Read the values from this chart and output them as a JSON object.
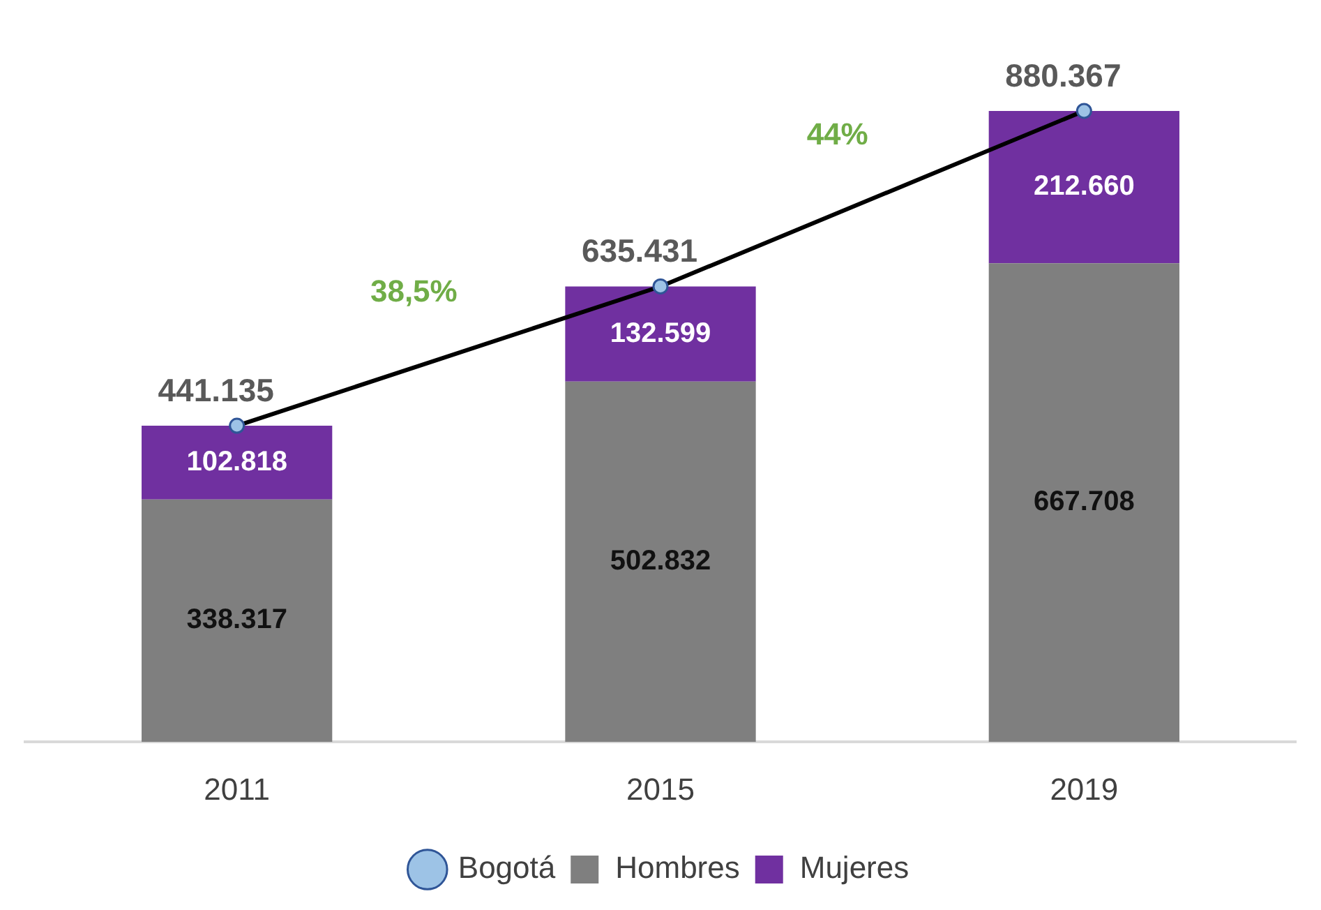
{
  "chart_data": {
    "type": "bar",
    "stacked": true,
    "categories": [
      "2011",
      "2015",
      "2019"
    ],
    "series": [
      {
        "name": "Hombres",
        "color": "#7f7f7f",
        "values": [
          338317,
          502832,
          667708
        ],
        "value_labels": [
          "338.317",
          "502.832",
          "667.708"
        ]
      },
      {
        "name": "Mujeres",
        "color": "#7030a0",
        "values": [
          102818,
          132599,
          212660
        ],
        "value_labels": [
          "102.818",
          "132.599",
          "212.660"
        ]
      },
      {
        "name": "Bogotá",
        "type": "line",
        "color": "#000000",
        "values": [
          441135,
          635431,
          880367
        ],
        "value_labels": [
          "441.135",
          "635.431",
          "880.367"
        ]
      }
    ],
    "annotations": [
      "38,5%",
      "44%"
    ],
    "legend": "bottom",
    "tick_labels": "x",
    "grid": false,
    "marker": "circle",
    "line_style": "solid"
  }
}
